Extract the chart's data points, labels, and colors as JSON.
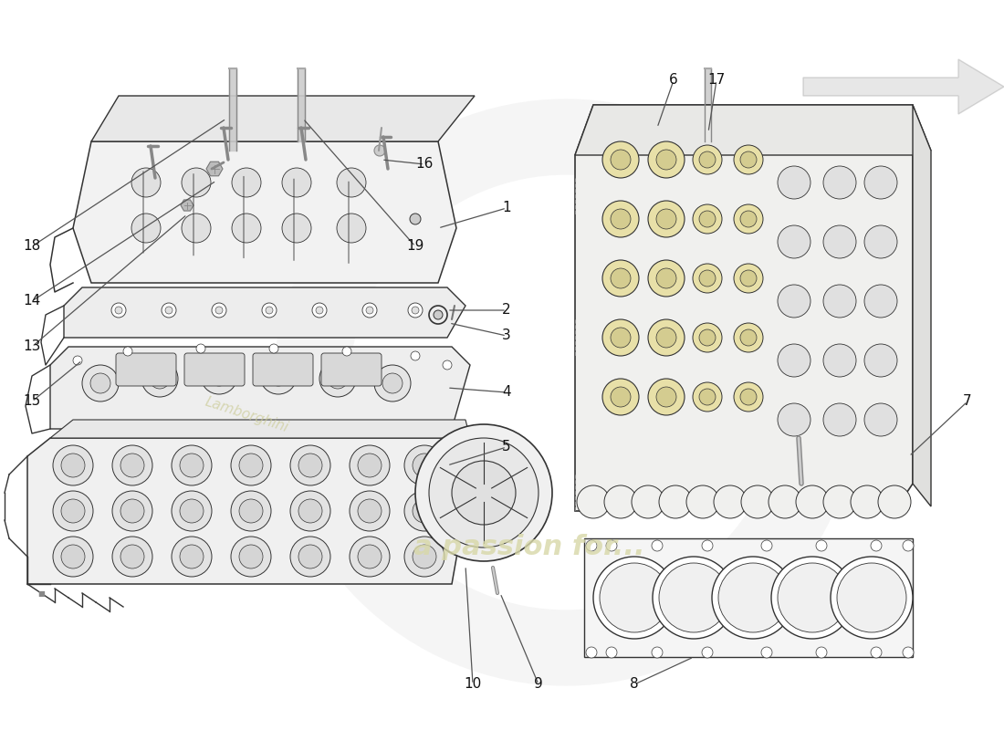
{
  "background_color": "#ffffff",
  "line_color": "#333333",
  "label_fontsize": 11,
  "watermark_color": "#d8d8a8",
  "logo_color": "#dddddd",
  "parts": {
    "valve_cover": {
      "fc": "#f2f2f2",
      "ec": "#333333"
    },
    "gasket1": {
      "fc": "#eeeeee",
      "ec": "#333333"
    },
    "gasket2": {
      "fc": "#ebebeb",
      "ec": "#333333"
    },
    "camshaft_carrier": {
      "fc": "#f0f0f0",
      "ec": "#333333"
    },
    "cylinder_head": {
      "fc": "#f0f0ee",
      "ec": "#333333"
    },
    "head_gasket": {
      "fc": "#f5f5f5",
      "ec": "#333333"
    },
    "round_cover": {
      "fc": "#f0f0f0",
      "ec": "#333333"
    }
  },
  "valve_yellow": "#e8e0a8",
  "valve_yellow2": "#d4cc90"
}
